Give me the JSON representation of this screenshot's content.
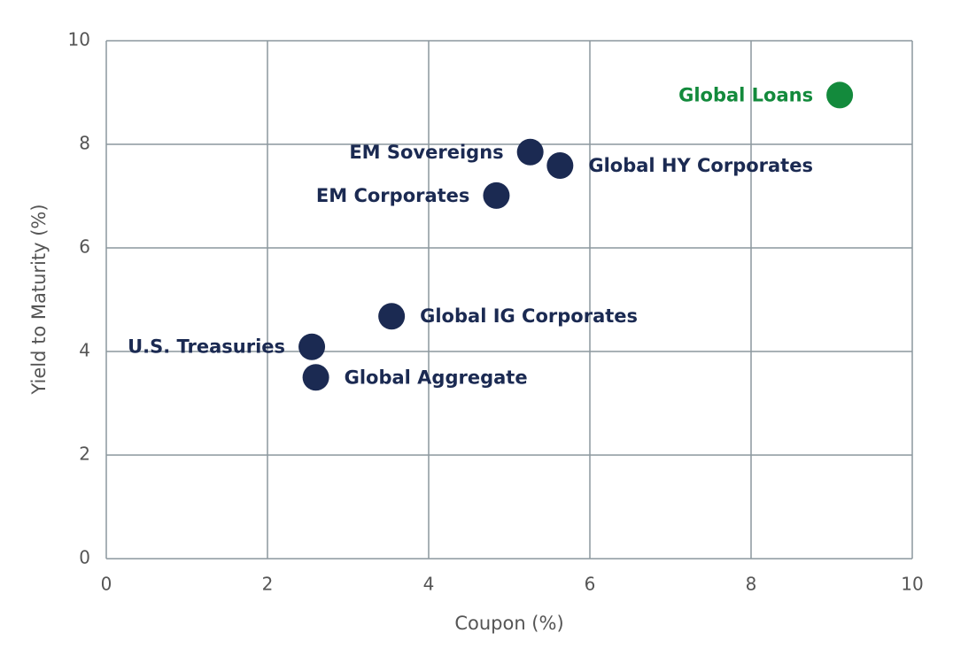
{
  "chart_data": {
    "type": "scatter",
    "xlabel": "Coupon (%)",
    "ylabel": "Yield to Maturity (%)",
    "xlim": [
      0,
      10
    ],
    "ylim": [
      0,
      10
    ],
    "xticks": [
      0,
      2,
      4,
      6,
      8,
      10
    ],
    "yticks": [
      0,
      2,
      4,
      6,
      8,
      10
    ],
    "grid": true,
    "series": [
      {
        "name": "Global Loans",
        "color": "#138a3c",
        "x": [
          9.1
        ],
        "values": [
          8.95
        ]
      },
      {
        "name": "EM Sovereigns",
        "color": "#1b2a52",
        "x": [
          5.26
        ],
        "values": [
          7.85
        ]
      },
      {
        "name": "Global HY Corporates",
        "color": "#1b2a52",
        "x": [
          5.63
        ],
        "values": [
          7.59
        ]
      },
      {
        "name": "EM Corporates",
        "color": "#1b2a52",
        "x": [
          4.84
        ],
        "values": [
          7.01
        ]
      },
      {
        "name": "Global IG Corporates",
        "color": "#1b2a52",
        "x": [
          3.54
        ],
        "values": [
          4.68
        ]
      },
      {
        "name": "U.S. Treasuries",
        "color": "#1b2a52",
        "x": [
          2.55
        ],
        "values": [
          4.09
        ]
      },
      {
        "name": "Global Aggregate",
        "color": "#1b2a52",
        "x": [
          2.6
        ],
        "values": [
          3.5
        ]
      }
    ]
  }
}
